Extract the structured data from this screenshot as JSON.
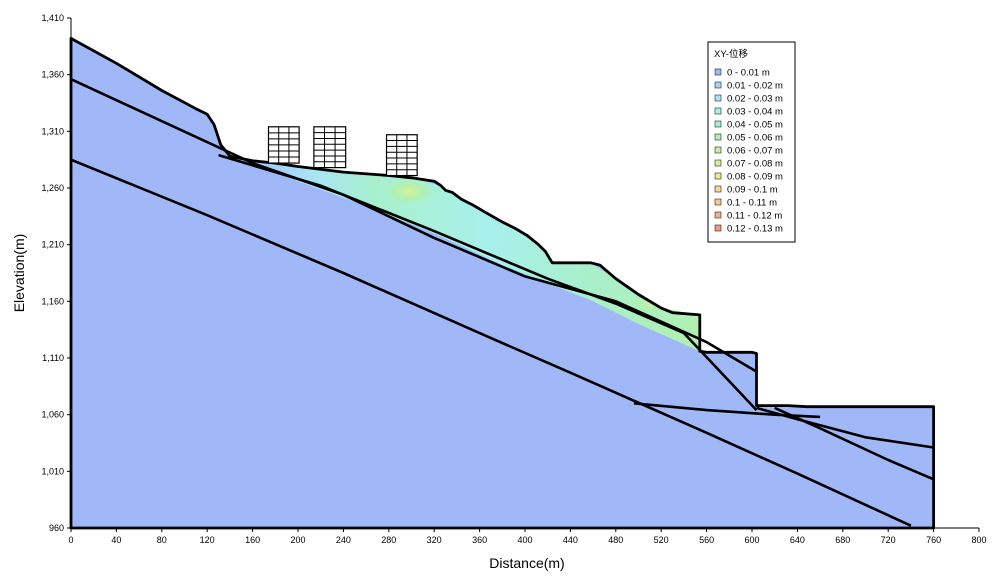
{
  "chart_data": {
    "type": "area",
    "xlabel": "Distance(m)",
    "ylabel": "Elevation(m)",
    "xlim": [
      0,
      800
    ],
    "ylim": [
      960,
      1410
    ],
    "x_ticks": [
      "0",
      "40",
      "80",
      "120",
      "160",
      "200",
      "240",
      "280",
      "320",
      "360",
      "400",
      "440",
      "480",
      "520",
      "560",
      "600",
      "640",
      "680",
      "720",
      "760",
      "800"
    ],
    "y_ticks": [
      "960",
      "1,010",
      "1,060",
      "1,110",
      "1,160",
      "1,210",
      "1,260",
      "1,310",
      "1,360",
      "1,410"
    ],
    "grid": false,
    "legend_position": "top-right",
    "legend": {
      "title": "XY-位移",
      "items": [
        {
          "label": "0 - 0.01 m",
          "color": "#a0b8f8"
        },
        {
          "label": "0.01 - 0.02 m",
          "color": "#a8d0f8"
        },
        {
          "label": "0.02 - 0.03 m",
          "color": "#a8e4f8"
        },
        {
          "label": "0.03 - 0.04 m",
          "color": "#a8f0ec"
        },
        {
          "label": "0.04 - 0.05 m",
          "color": "#a8f0cc"
        },
        {
          "label": "0.05 - 0.06 m",
          "color": "#b0f0b0"
        },
        {
          "label": "0.06 - 0.07 m",
          "color": "#c4f0a0"
        },
        {
          "label": "0.07 - 0.08 m",
          "color": "#d8f098"
        },
        {
          "label": "0.08 - 0.09 m",
          "color": "#ecec90"
        },
        {
          "label": "0.09 - 0.1 m",
          "color": "#f4dc90"
        },
        {
          "label": "0.1 - 0.11 m",
          "color": "#f8c890"
        },
        {
          "label": "0.11 - 0.12 m",
          "color": "#f8b088"
        },
        {
          "label": "0.12 - 0.13 m",
          "color": "#f89880"
        }
      ]
    },
    "ground_profile": [
      [
        0,
        1392
      ],
      [
        40,
        1370
      ],
      [
        80,
        1346
      ],
      [
        110,
        1330
      ],
      [
        120,
        1325
      ],
      [
        126,
        1316
      ],
      [
        132,
        1298
      ],
      [
        140,
        1288
      ],
      [
        160,
        1284
      ],
      [
        180,
        1282
      ],
      [
        200,
        1279
      ],
      [
        240,
        1274
      ],
      [
        280,
        1271
      ],
      [
        300,
        1269
      ],
      [
        320,
        1266
      ],
      [
        326,
        1262
      ],
      [
        330,
        1258
      ],
      [
        336,
        1256
      ],
      [
        344,
        1250
      ],
      [
        354,
        1245
      ],
      [
        366,
        1238
      ],
      [
        380,
        1230
      ],
      [
        392,
        1224
      ],
      [
        402,
        1218
      ],
      [
        412,
        1210
      ],
      [
        418,
        1204
      ],
      [
        424,
        1194
      ],
      [
        458,
        1194
      ],
      [
        466,
        1192
      ],
      [
        480,
        1180
      ],
      [
        500,
        1166
      ],
      [
        520,
        1154
      ],
      [
        530,
        1150
      ],
      [
        554,
        1148
      ],
      [
        554,
        1116
      ],
      [
        560,
        1115
      ],
      [
        600,
        1115
      ],
      [
        604,
        1114
      ],
      [
        604,
        1068
      ],
      [
        632,
        1068
      ],
      [
        648,
        1067
      ],
      [
        760,
        1067
      ],
      [
        760,
        960
      ],
      [
        0,
        960
      ]
    ],
    "layer_boundaries": [
      [
        [
          0,
          1356
        ],
        [
          160,
          1282
        ],
        [
          240,
          1254
        ],
        [
          320,
          1216
        ],
        [
          400,
          1182
        ],
        [
          480,
          1160
        ],
        [
          560,
          1124
        ],
        [
          604,
          1098
        ]
      ],
      [
        [
          130,
          1289
        ],
        [
          220,
          1262
        ],
        [
          320,
          1222
        ],
        [
          420,
          1180
        ],
        [
          480,
          1158
        ],
        [
          540,
          1132
        ],
        [
          604,
          1064
        ]
      ],
      [
        [
          0,
          1285
        ],
        [
          120,
          1236
        ],
        [
          240,
          1185
        ],
        [
          360,
          1132
        ],
        [
          440,
          1097
        ],
        [
          560,
          1044
        ],
        [
          640,
          1008
        ],
        [
          740,
          962
        ]
      ],
      [
        [
          496,
          1070
        ],
        [
          560,
          1064
        ],
        [
          620,
          1060
        ],
        [
          660,
          1058
        ]
      ],
      [
        [
          604,
          1066
        ],
        [
          640,
          1056
        ],
        [
          700,
          1040
        ],
        [
          760,
          1031
        ]
      ],
      [
        [
          620,
          1066
        ],
        [
          660,
          1048
        ],
        [
          720,
          1020
        ],
        [
          760,
          1003
        ]
      ]
    ],
    "displacement_zone": [
      [
        146,
        1286
      ],
      [
        200,
        1279
      ],
      [
        260,
        1272
      ],
      [
        300,
        1269
      ],
      [
        326,
        1262
      ],
      [
        344,
        1250
      ],
      [
        380,
        1230
      ],
      [
        412,
        1210
      ],
      [
        424,
        1194
      ],
      [
        458,
        1194
      ],
      [
        480,
        1180
      ],
      [
        520,
        1154
      ],
      [
        554,
        1148
      ],
      [
        554,
        1116
      ],
      [
        500,
        1140
      ],
      [
        460,
        1160
      ],
      [
        420,
        1176
      ],
      [
        380,
        1192
      ],
      [
        320,
        1220
      ],
      [
        260,
        1244
      ],
      [
        200,
        1266
      ],
      [
        146,
        1286
      ]
    ],
    "buildings": [
      {
        "x_start": 174,
        "x_end": 201,
        "base": 1282,
        "top": 1314,
        "floors": 6,
        "bays": 3
      },
      {
        "x_start": 214,
        "x_end": 242,
        "base": 1278,
        "top": 1314,
        "floors": 7,
        "bays": 3
      },
      {
        "x_start": 278,
        "x_end": 305,
        "base": 1271,
        "top": 1307,
        "floors": 7,
        "bays": 3
      }
    ]
  }
}
